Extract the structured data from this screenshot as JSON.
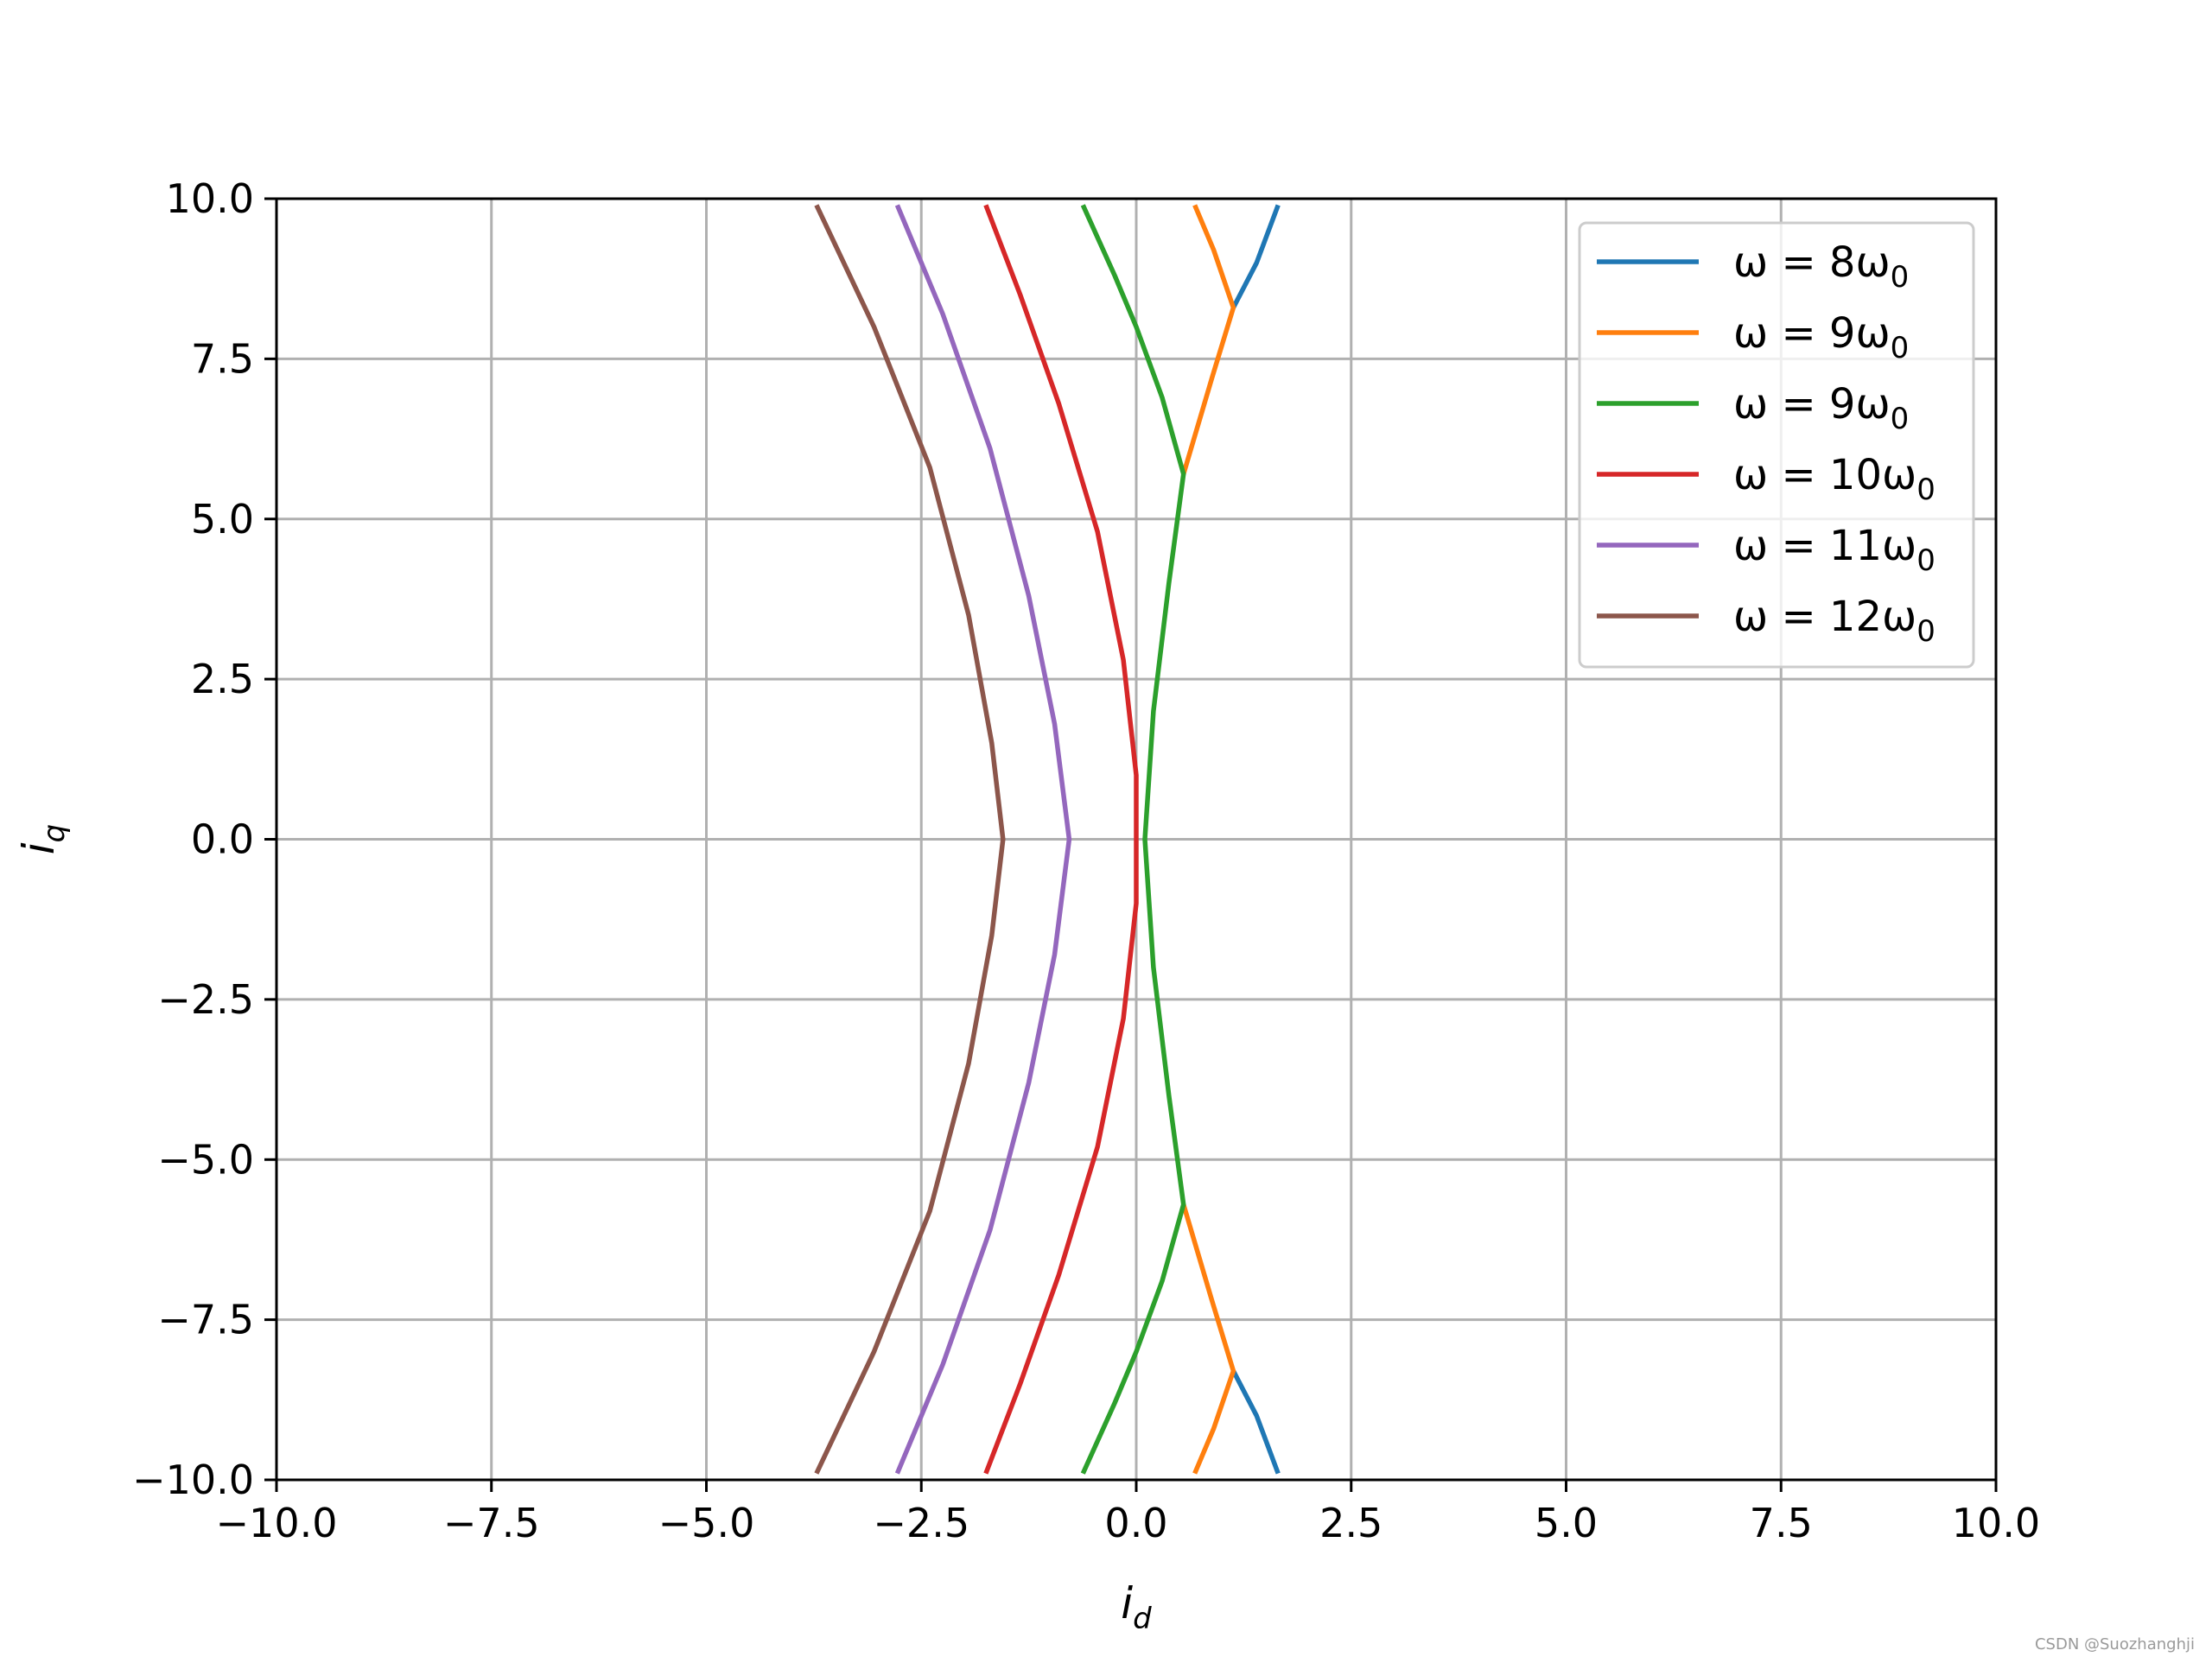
{
  "chart_data": {
    "type": "line",
    "xlabel": "i",
    "xlabel_sub": "d",
    "ylabel": "i",
    "ylabel_sub": "q",
    "xlim": [
      -10,
      10
    ],
    "ylim": [
      -10,
      10
    ],
    "xticks": [
      -10,
      -7.5,
      -5,
      -2.5,
      0,
      2.5,
      5,
      7.5,
      10
    ],
    "yticks": [
      -10,
      -7.5,
      -5,
      -2.5,
      0,
      2.5,
      5,
      7.5,
      10
    ],
    "xtick_labels": [
      "−10.0",
      "−7.5",
      "−5.0",
      "−2.5",
      "0.0",
      "2.5",
      "5.0",
      "7.5",
      "10.0"
    ],
    "ytick_labels": [
      "−10.0",
      "−7.5",
      "−5.0",
      "−2.5",
      "0.0",
      "2.5",
      "5.0",
      "7.5",
      "10.0"
    ],
    "grid": true,
    "legend_position": "top-right",
    "series": [
      {
        "name": "ω = 8ω0",
        "name_main": "ω = 8ω",
        "name_sub": "0",
        "color": "#1f77b4",
        "points": [
          [
            1.65,
            9.9
          ],
          [
            1.4,
            9.0
          ],
          [
            1.13,
            8.3
          ]
        ],
        "points_bottom": [
          [
            1.13,
            -8.3
          ],
          [
            1.4,
            -9.0
          ],
          [
            1.65,
            -9.9
          ]
        ]
      },
      {
        "name": "ω = 9ω0",
        "name_main": "ω = 9ω",
        "name_sub": "0",
        "color": "#ff7f0e",
        "points": [
          [
            0.68,
            9.9
          ],
          [
            0.9,
            9.2
          ],
          [
            1.13,
            8.3
          ],
          [
            0.88,
            7.2
          ],
          [
            0.55,
            5.7
          ]
        ],
        "points_bottom": [
          [
            0.55,
            -5.7
          ],
          [
            0.88,
            -7.2
          ],
          [
            1.13,
            -8.3
          ],
          [
            0.9,
            -9.2
          ],
          [
            0.68,
            -9.9
          ]
        ]
      },
      {
        "name": "ω = 9ω0",
        "name_main": "ω = 9ω",
        "name_sub": "0",
        "color": "#2ca02c",
        "points": [
          [
            -0.62,
            9.9
          ],
          [
            -0.25,
            8.8
          ],
          [
            0.0,
            8.0
          ],
          [
            0.3,
            6.9
          ],
          [
            0.55,
            5.7
          ],
          [
            0.38,
            4.0
          ],
          [
            0.2,
            2.0
          ],
          [
            0.1,
            0.0
          ],
          [
            0.2,
            -2.0
          ],
          [
            0.38,
            -4.0
          ],
          [
            0.55,
            -5.7
          ],
          [
            0.3,
            -6.9
          ],
          [
            0.0,
            -8.0
          ],
          [
            -0.25,
            -8.8
          ],
          [
            -0.62,
            -9.9
          ]
        ]
      },
      {
        "name": "ω = 10ω0",
        "name_main": "ω = 10ω",
        "name_sub": "0",
        "color": "#d62728",
        "points": [
          [
            -1.75,
            9.9
          ],
          [
            -1.35,
            8.5
          ],
          [
            -0.9,
            6.8
          ],
          [
            -0.45,
            4.8
          ],
          [
            -0.15,
            2.8
          ],
          [
            0.0,
            1.0
          ],
          [
            0.0,
            0.0
          ],
          [
            0.0,
            -1.0
          ],
          [
            -0.15,
            -2.8
          ],
          [
            -0.45,
            -4.8
          ],
          [
            -0.9,
            -6.8
          ],
          [
            -1.35,
            -8.5
          ],
          [
            -1.75,
            -9.9
          ]
        ]
      },
      {
        "name": "ω = 11ω0",
        "name_main": "ω = 11ω",
        "name_sub": "0",
        "color": "#9467bd",
        "points": [
          [
            -2.78,
            9.9
          ],
          [
            -2.25,
            8.2
          ],
          [
            -1.7,
            6.1
          ],
          [
            -1.25,
            3.8
          ],
          [
            -0.95,
            1.8
          ],
          [
            -0.78,
            0.0
          ],
          [
            -0.95,
            -1.8
          ],
          [
            -1.25,
            -3.8
          ],
          [
            -1.7,
            -6.1
          ],
          [
            -2.25,
            -8.2
          ],
          [
            -2.78,
            -9.9
          ]
        ]
      },
      {
        "name": "ω = 12ω0",
        "name_main": "ω = 12ω",
        "name_sub": "0",
        "color": "#8c564b",
        "points": [
          [
            -3.72,
            9.9
          ],
          [
            -3.05,
            8.0
          ],
          [
            -2.4,
            5.8
          ],
          [
            -1.95,
            3.5
          ],
          [
            -1.68,
            1.5
          ],
          [
            -1.55,
            0.0
          ],
          [
            -1.68,
            -1.5
          ],
          [
            -1.95,
            -3.5
          ],
          [
            -2.4,
            -5.8
          ],
          [
            -3.05,
            -8.0
          ],
          [
            -3.72,
            -9.9
          ]
        ]
      }
    ]
  },
  "watermark": "CSDN @Suozhanghji"
}
